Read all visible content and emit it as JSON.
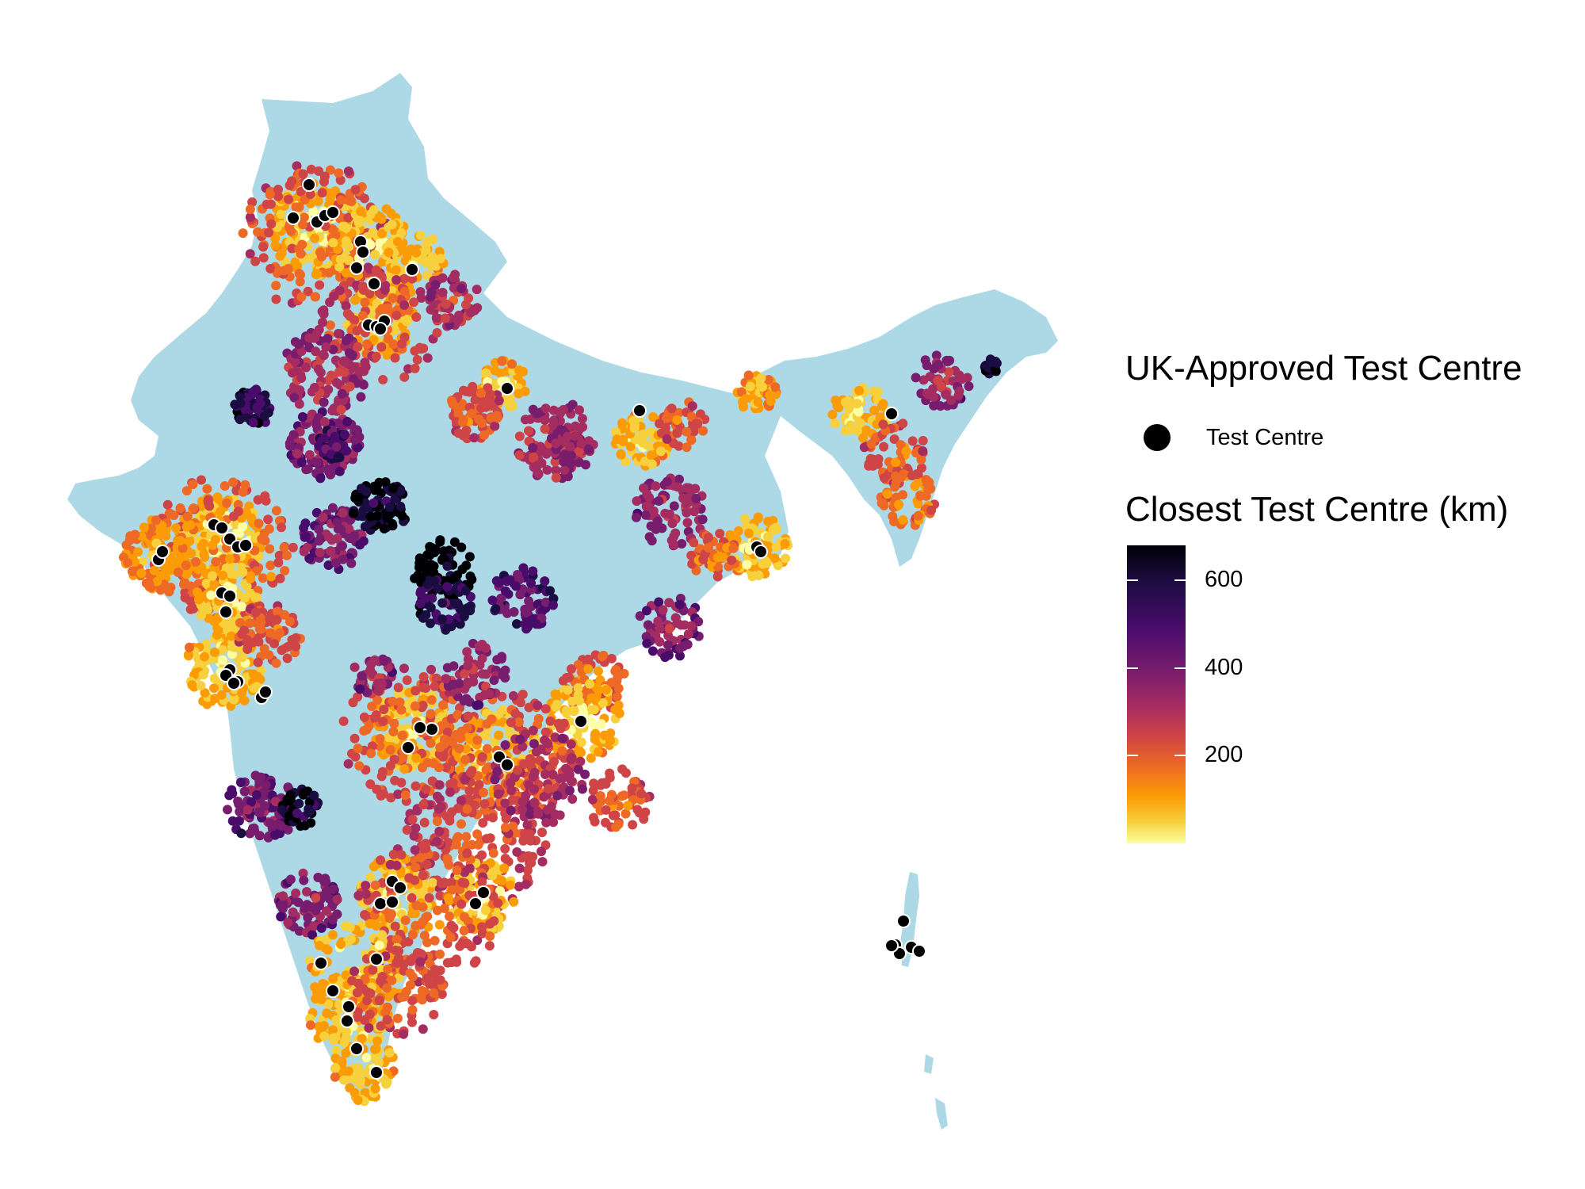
{
  "legend": {
    "centre_title": "UK-Approved Test Centre",
    "centre_key_label": "Test Centre",
    "distance_title": "Closest Test Centre (km)",
    "colorbar_ticks": [
      "600",
      "400",
      "200"
    ],
    "colorbar_tick_values": [
      600,
      400,
      200
    ],
    "colorbar_max": 680,
    "palette": "inferno (reversed)"
  },
  "colors": {
    "land": "#add8e6",
    "test_centre": "#000000",
    "near": "#fcffa4",
    "far": "#000004"
  },
  "chart_data": {
    "type": "map",
    "region": "India",
    "point_layers": [
      {
        "name": "Test Centre",
        "color": "#000000"
      },
      {
        "name": "Closest Test Centre (km)",
        "scale": "continuous",
        "min": 0,
        "max": 680
      }
    ]
  }
}
